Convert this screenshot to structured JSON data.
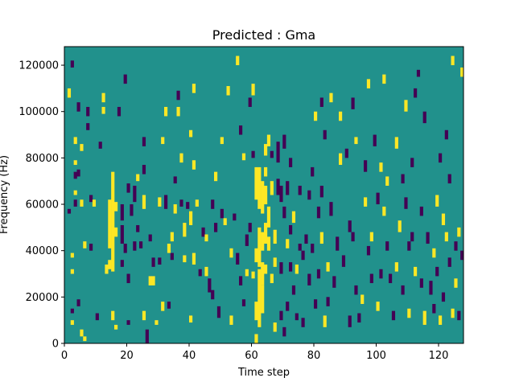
{
  "chart_data": {
    "type": "heatmap",
    "title": "Predicted : Gma",
    "xlabel": "Time step",
    "ylabel": "Frequency (Hz)",
    "xlim": [
      0,
      128
    ],
    "ylim": [
      0,
      128000
    ],
    "xticks": [
      0,
      20,
      40,
      60,
      80,
      100,
      120
    ],
    "yticks": [
      0,
      20000,
      40000,
      60000,
      80000,
      100000,
      120000
    ],
    "n_time_steps": 128,
    "n_freq_bins": 128,
    "colormap": {
      "background": "#21918c",
      "high": "#fde725",
      "low": "#440154"
    },
    "value_levels": {
      "background": 0,
      "high": 1,
      "low": -1
    },
    "cells_note": "each entry: [time_step, freq_bin_start, freq_bin_end, level] where freq bins are 1000 Hz wide",
    "cells": [
      [
        1,
        106,
        110,
        1
      ],
      [
        1,
        56,
        58,
        -1
      ],
      [
        2,
        119,
        122,
        -1
      ],
      [
        2,
        37,
        39,
        1
      ],
      [
        2,
        30,
        32,
        1
      ],
      [
        2,
        13,
        15,
        -1
      ],
      [
        2,
        8,
        10,
        1
      ],
      [
        3,
        86,
        89,
        1
      ],
      [
        3,
        77,
        79,
        1
      ],
      [
        3,
        71,
        74,
        -1
      ],
      [
        3,
        64,
        66,
        1
      ],
      [
        3,
        59,
        62,
        -1
      ],
      [
        4,
        100,
        104,
        -1
      ],
      [
        4,
        72,
        75,
        -1
      ],
      [
        4,
        16,
        19,
        -1
      ],
      [
        5,
        83,
        86,
        1
      ],
      [
        5,
        59,
        62,
        1
      ],
      [
        5,
        3,
        6,
        1
      ],
      [
        6,
        41,
        44,
        1
      ],
      [
        6,
        1,
        3,
        1
      ],
      [
        7,
        98,
        102,
        -1
      ],
      [
        7,
        92,
        95,
        -1
      ],
      [
        8,
        61,
        64,
        -1
      ],
      [
        8,
        40,
        43,
        -1
      ],
      [
        9,
        59,
        62,
        1
      ],
      [
        10,
        10,
        13,
        -1
      ],
      [
        11,
        84,
        87,
        -1
      ],
      [
        12,
        104,
        108,
        1
      ],
      [
        12,
        99,
        102,
        1
      ],
      [
        13,
        30,
        34,
        1
      ],
      [
        14,
        41,
        62,
        1
      ],
      [
        14,
        32,
        36,
        1
      ],
      [
        15,
        31,
        74,
        1
      ],
      [
        15,
        10,
        14,
        1
      ],
      [
        16,
        57,
        61,
        1
      ],
      [
        16,
        46,
        50,
        1
      ],
      [
        16,
        6,
        8,
        1
      ],
      [
        17,
        98,
        102,
        -1
      ],
      [
        18,
        53,
        60,
        -1
      ],
      [
        18,
        43,
        51,
        -1
      ],
      [
        18,
        33,
        36,
        -1
      ],
      [
        19,
        112,
        116,
        -1
      ],
      [
        19,
        39,
        43,
        -1
      ],
      [
        20,
        65,
        69,
        -1
      ],
      [
        20,
        26,
        30,
        -1
      ],
      [
        20,
        8,
        10,
        -1
      ],
      [
        21,
        55,
        60,
        -1
      ],
      [
        22,
        61,
        68,
        -1
      ],
      [
        22,
        40,
        44,
        -1
      ],
      [
        23,
        70,
        73,
        1
      ],
      [
        23,
        48,
        51,
        -1
      ],
      [
        24,
        41,
        44,
        -1
      ],
      [
        25,
        85,
        89,
        -1
      ],
      [
        25,
        73,
        77,
        -1
      ],
      [
        25,
        58,
        64,
        1
      ],
      [
        25,
        10,
        14,
        1
      ],
      [
        26,
        0,
        6,
        -1
      ],
      [
        27,
        44,
        47,
        -1
      ],
      [
        27,
        25,
        29,
        1
      ],
      [
        28,
        33,
        37,
        -1
      ],
      [
        28,
        25,
        29,
        1
      ],
      [
        29,
        8,
        10,
        1
      ],
      [
        30,
        59,
        63,
        1
      ],
      [
        30,
        34,
        37,
        -1
      ],
      [
        31,
        86,
        89,
        1
      ],
      [
        31,
        14,
        18,
        1
      ],
      [
        32,
        98,
        102,
        1
      ],
      [
        32,
        58,
        64,
        -1
      ],
      [
        33,
        39,
        43,
        1
      ],
      [
        33,
        15,
        18,
        -1
      ],
      [
        34,
        44,
        48,
        1
      ],
      [
        34,
        36,
        39,
        -1
      ],
      [
        35,
        69,
        72,
        -1
      ],
      [
        35,
        56,
        60,
        1
      ],
      [
        36,
        105,
        109,
        -1
      ],
      [
        36,
        98,
        102,
        1
      ],
      [
        37,
        78,
        82,
        1
      ],
      [
        37,
        59,
        62,
        -1
      ],
      [
        38,
        46,
        52,
        1
      ],
      [
        38,
        35,
        38,
        1
      ],
      [
        39,
        58,
        61,
        -1
      ],
      [
        40,
        89,
        92,
        1
      ],
      [
        40,
        51,
        57,
        1
      ],
      [
        40,
        9,
        12,
        1
      ],
      [
        41,
        108,
        112,
        1
      ],
      [
        41,
        75,
        79,
        1
      ],
      [
        41,
        34,
        39,
        1
      ],
      [
        42,
        59,
        62,
        1
      ],
      [
        43,
        29,
        32,
        -1
      ],
      [
        44,
        46,
        50,
        -1
      ],
      [
        45,
        44,
        47,
        1
      ],
      [
        45,
        29,
        33,
        1
      ],
      [
        46,
        22,
        28,
        -1
      ],
      [
        47,
        58,
        62,
        -1
      ],
      [
        47,
        19,
        23,
        -1
      ],
      [
        48,
        70,
        74,
        1
      ],
      [
        48,
        48,
        52,
        -1
      ],
      [
        49,
        11,
        16,
        -1
      ],
      [
        50,
        86,
        89,
        1
      ],
      [
        50,
        54,
        58,
        -1
      ],
      [
        51,
        51,
        54,
        1
      ],
      [
        52,
        107,
        111,
        1
      ],
      [
        53,
        37,
        41,
        1
      ],
      [
        53,
        8,
        12,
        1
      ],
      [
        54,
        53,
        56,
        -1
      ],
      [
        55,
        120,
        124,
        1
      ],
      [
        55,
        34,
        39,
        -1
      ],
      [
        56,
        90,
        94,
        -1
      ],
      [
        56,
        25,
        29,
        -1
      ],
      [
        57,
        79,
        82,
        1
      ],
      [
        57,
        16,
        19,
        -1
      ],
      [
        58,
        42,
        47,
        -1
      ],
      [
        58,
        29,
        32,
        1
      ],
      [
        59,
        102,
        106,
        -1
      ],
      [
        59,
        48,
        52,
        -1
      ],
      [
        60,
        107,
        112,
        1
      ],
      [
        60,
        80,
        83,
        -1
      ],
      [
        60,
        28,
        31,
        1
      ],
      [
        61,
        62,
        76,
        1
      ],
      [
        61,
        35,
        41,
        1
      ],
      [
        61,
        10,
        18,
        1
      ],
      [
        61,
        0,
        4,
        1
      ],
      [
        62,
        58,
        76,
        1
      ],
      [
        62,
        33,
        50,
        1
      ],
      [
        62,
        7,
        32,
        1
      ],
      [
        63,
        56,
        70,
        1
      ],
      [
        63,
        40,
        48,
        1
      ],
      [
        63,
        25,
        35,
        1
      ],
      [
        63,
        13,
        25,
        1
      ],
      [
        64,
        81,
        86,
        1
      ],
      [
        64,
        72,
        76,
        1
      ],
      [
        64,
        60,
        68,
        1
      ],
      [
        64,
        43,
        52,
        1
      ],
      [
        64,
        30,
        34,
        1
      ],
      [
        65,
        85,
        90,
        1
      ],
      [
        65,
        50,
        59,
        1
      ],
      [
        65,
        40,
        46,
        1
      ],
      [
        66,
        80,
        83,
        -1
      ],
      [
        66,
        64,
        70,
        1
      ],
      [
        66,
        26,
        30,
        1
      ],
      [
        67,
        43,
        49,
        1
      ],
      [
        67,
        33,
        37,
        1
      ],
      [
        67,
        5,
        9,
        1
      ],
      [
        68,
        78,
        87,
        -1
      ],
      [
        68,
        64,
        71,
        -1
      ],
      [
        69,
        61,
        68,
        -1
      ],
      [
        69,
        30,
        35,
        -1
      ],
      [
        69,
        10,
        14,
        -1
      ],
      [
        70,
        84,
        90,
        -1
      ],
      [
        70,
        54,
        59,
        -1
      ],
      [
        70,
        3,
        7,
        -1
      ],
      [
        71,
        64,
        70,
        -1
      ],
      [
        71,
        41,
        45,
        1
      ],
      [
        71,
        14,
        18,
        -1
      ],
      [
        72,
        76,
        80,
        -1
      ],
      [
        72,
        47,
        51,
        -1
      ],
      [
        72,
        31,
        35,
        -1
      ],
      [
        73,
        52,
        57,
        1
      ],
      [
        73,
        21,
        25,
        -1
      ],
      [
        74,
        30,
        34,
        1
      ],
      [
        74,
        10,
        13,
        -1
      ],
      [
        75,
        64,
        68,
        -1
      ],
      [
        75,
        40,
        43,
        -1
      ],
      [
        76,
        36,
        40,
        -1
      ],
      [
        76,
        7,
        11,
        -1
      ],
      [
        77,
        43,
        47,
        -1
      ],
      [
        78,
        62,
        66,
        -1
      ],
      [
        78,
        25,
        30,
        -1
      ],
      [
        79,
        72,
        76,
        -1
      ],
      [
        79,
        39,
        43,
        -1
      ],
      [
        80,
        96,
        100,
        1
      ],
      [
        80,
        15,
        19,
        -1
      ],
      [
        81,
        54,
        59,
        -1
      ],
      [
        81,
        28,
        32,
        -1
      ],
      [
        82,
        102,
        106,
        -1
      ],
      [
        82,
        63,
        68,
        -1
      ],
      [
        82,
        43,
        48,
        1
      ],
      [
        83,
        88,
        92,
        -1
      ],
      [
        83,
        7,
        12,
        1
      ],
      [
        84,
        31,
        35,
        1
      ],
      [
        84,
        16,
        20,
        -1
      ],
      [
        85,
        104,
        108,
        1
      ],
      [
        85,
        55,
        61,
        -1
      ],
      [
        86,
        24,
        29,
        -1
      ],
      [
        87,
        40,
        46,
        -1
      ],
      [
        88,
        96,
        100,
        1
      ],
      [
        88,
        77,
        82,
        1
      ],
      [
        89,
        33,
        38,
        -1
      ],
      [
        90,
        80,
        84,
        -1
      ],
      [
        91,
        48,
        53,
        -1
      ],
      [
        91,
        7,
        12,
        -1
      ],
      [
        92,
        101,
        106,
        -1
      ],
      [
        92,
        44,
        48,
        -1
      ],
      [
        93,
        86,
        89,
        1
      ],
      [
        93,
        21,
        25,
        -1
      ],
      [
        94,
        9,
        13,
        -1
      ],
      [
        95,
        17,
        21,
        1
      ],
      [
        96,
        74,
        79,
        -1
      ],
      [
        96,
        59,
        63,
        1
      ],
      [
        97,
        110,
        114,
        1
      ],
      [
        97,
        38,
        42,
        -1
      ],
      [
        98,
        44,
        48,
        1
      ],
      [
        98,
        26,
        30,
        -1
      ],
      [
        99,
        85,
        90,
        -1
      ],
      [
        100,
        60,
        65,
        -1
      ],
      [
        100,
        14,
        18,
        1
      ],
      [
        101,
        74,
        78,
        1
      ],
      [
        101,
        28,
        32,
        -1
      ],
      [
        102,
        112,
        116,
        1
      ],
      [
        102,
        55,
        59,
        1
      ],
      [
        103,
        68,
        72,
        1
      ],
      [
        103,
        40,
        44,
        -1
      ],
      [
        104,
        26,
        30,
        -1
      ],
      [
        105,
        10,
        14,
        -1
      ],
      [
        106,
        84,
        89,
        1
      ],
      [
        106,
        31,
        35,
        1
      ],
      [
        107,
        48,
        53,
        1
      ],
      [
        108,
        69,
        73,
        -1
      ],
      [
        108,
        21,
        25,
        -1
      ],
      [
        109,
        100,
        105,
        1
      ],
      [
        109,
        58,
        63,
        -1
      ],
      [
        110,
        40,
        44,
        -1
      ],
      [
        110,
        11,
        15,
        1
      ],
      [
        111,
        76,
        80,
        -1
      ],
      [
        111,
        44,
        48,
        -1
      ],
      [
        112,
        106,
        110,
        -1
      ],
      [
        112,
        29,
        33,
        1
      ],
      [
        113,
        115,
        118,
        -1
      ],
      [
        114,
        55,
        59,
        -1
      ],
      [
        114,
        24,
        28,
        -1
      ],
      [
        115,
        95,
        100,
        -1
      ],
      [
        115,
        8,
        14,
        1
      ],
      [
        116,
        43,
        48,
        -1
      ],
      [
        117,
        21,
        27,
        -1
      ],
      [
        118,
        37,
        41,
        1
      ],
      [
        118,
        13,
        17,
        -1
      ],
      [
        119,
        59,
        64,
        1
      ],
      [
        119,
        29,
        33,
        -1
      ],
      [
        120,
        78,
        82,
        -1
      ],
      [
        120,
        8,
        12,
        1
      ],
      [
        121,
        51,
        56,
        1
      ],
      [
        121,
        18,
        22,
        -1
      ],
      [
        122,
        88,
        92,
        -1
      ],
      [
        122,
        44,
        48,
        1
      ],
      [
        123,
        69,
        73,
        -1
      ],
      [
        123,
        33,
        37,
        -1
      ],
      [
        124,
        120,
        124,
        1
      ],
      [
        124,
        11,
        15,
        1
      ],
      [
        125,
        40,
        44,
        -1
      ],
      [
        125,
        24,
        28,
        1
      ],
      [
        126,
        46,
        50,
        1
      ],
      [
        126,
        10,
        14,
        -1
      ],
      [
        127,
        115,
        119,
        1
      ],
      [
        127,
        36,
        40,
        -1
      ]
    ]
  }
}
